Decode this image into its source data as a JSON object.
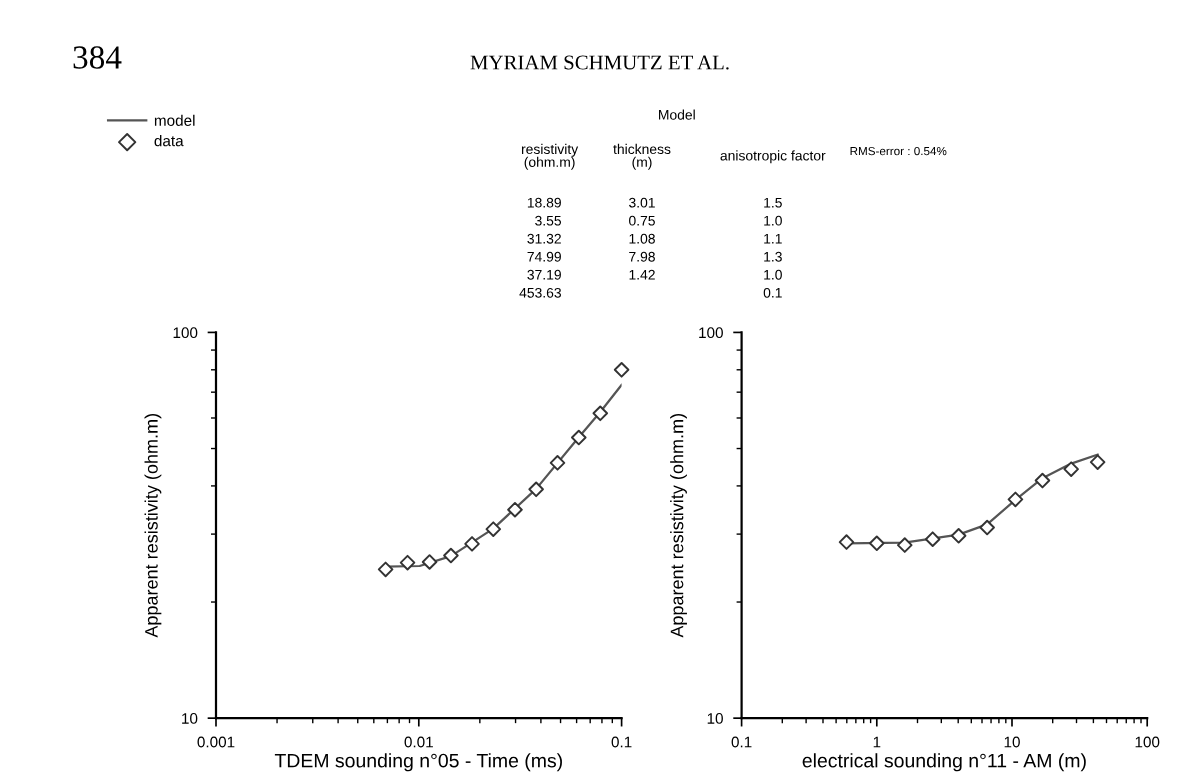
{
  "chart_data": [
    {
      "type": "line",
      "xlabel": "TDEM sounding n°05 - Time (ms)",
      "ylabel": "Apparent resistivity (ohm.m)",
      "log": "xy",
      "xlim": [
        0.001,
        0.1
      ],
      "ylim": [
        10,
        100
      ],
      "xticks": [
        0.001,
        0.01,
        0.1
      ],
      "yticks": [
        10,
        100
      ],
      "grid": false,
      "legend": "top left",
      "annotations": [
        "384",
        "MYRIAM SCHMUTZ ET AL.",
        "Model",
        "resistivity\n(ohm.m)",
        "thickness\n(m)",
        "anisotropic factor",
        "RMS-error : 0.54%",
        "18.89",
        "3.01",
        "1.5",
        "3.55",
        "0.75",
        "1.0",
        "31.32",
        "1.08",
        "1.1",
        "74.99",
        "7.98",
        "1.3",
        "37.19",
        "1.42",
        "1.0",
        "453.63",
        "0.1"
      ],
      "series": [
        {
          "name": "model",
          "color": "#555555",
          "marker": "none",
          "line_style": "solid",
          "x": [
            0.00686,
            0.0101,
            0.0144,
            0.0233,
            0.0379,
            0.0615,
            0.0785,
            0.1
          ],
          "values": [
            24.7,
            24.8,
            26.3,
            31.0,
            39.3,
            53.5,
            62.2,
            73.1
          ]
        },
        {
          "name": "data",
          "type": "scatter",
          "color": "#333333",
          "marker": "diamond",
          "x": [
            0.00686,
            0.0088,
            0.0113,
            0.0144,
            0.0183,
            0.0233,
            0.0298,
            0.0379,
            0.0483,
            0.0615,
            0.0785,
            0.1
          ],
          "values": [
            24.3,
            25.3,
            25.4,
            26.4,
            28.3,
            30.9,
            34.7,
            39.2,
            45.9,
            53.4,
            61.7,
            80.0
          ]
        }
      ]
    },
    {
      "type": "line",
      "xlabel": "electrical sounding n°11 - AM (m)",
      "ylabel": "Apparent resistivity (ohm.m)",
      "log": "xy",
      "xlim": [
        0.1,
        100
      ],
      "ylim": [
        10,
        100
      ],
      "xticks": [
        0.1,
        1,
        10,
        100
      ],
      "yticks": [
        10,
        100
      ],
      "grid": false,
      "series": [
        {
          "color": "#555555",
          "marker": "none",
          "line_style": "solid",
          "x": [
            0.597,
            1.6,
            4.03,
            6.55,
            10.6,
            16.8,
            27.4,
            43.0
          ],
          "values": [
            28.4,
            28.5,
            29.9,
            31.8,
            36.8,
            41.9,
            45.7,
            48.2
          ]
        },
        {
          "type": "scatter",
          "color": "#333333",
          "marker": "diamond",
          "x": [
            0.597,
            1.0,
            1.61,
            2.59,
            4.03,
            6.55,
            10.6,
            16.8,
            27.4,
            43.0
          ],
          "values": [
            28.6,
            28.4,
            28.1,
            29.1,
            29.7,
            31.2,
            36.9,
            41.3,
            44.2,
            46.1
          ]
        }
      ]
    }
  ]
}
